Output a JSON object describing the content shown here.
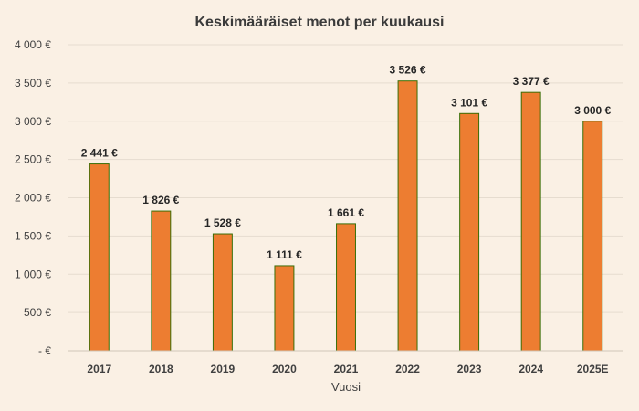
{
  "colors": {
    "background": "#faf0e4",
    "bar_fill": "#ed7d31",
    "bar_stroke": "#3a6e06",
    "grid": "#e6dccf"
  },
  "chart_data": {
    "type": "bar",
    "title": "Keskimääräiset menot per kuukausi",
    "xlabel": "Vuosi",
    "ylabel": "",
    "categories": [
      "2017",
      "2018",
      "2019",
      "2020",
      "2021",
      "2022",
      "2023",
      "2024",
      "2025E"
    ],
    "values": [
      2441,
      1826,
      1528,
      1111,
      1661,
      3526,
      3101,
      3377,
      3000
    ],
    "data_labels": [
      "2 441 €",
      "1 826 €",
      "1 528 €",
      "1 111 €",
      "1 661 €",
      "3 526 €",
      "3 101 €",
      "3 377 €",
      "3 000 €"
    ],
    "ylim": [
      0,
      4000
    ],
    "yticks": [
      0,
      500,
      1000,
      1500,
      2000,
      2500,
      3000,
      3500,
      4000
    ],
    "ytick_labels": [
      "-  €",
      "500 €",
      "1 000 €",
      "1 500 €",
      "2 000 €",
      "2 500 €",
      "3 000 €",
      "3 500 €",
      "4 000 €"
    ],
    "grid": true,
    "legend": "none"
  }
}
